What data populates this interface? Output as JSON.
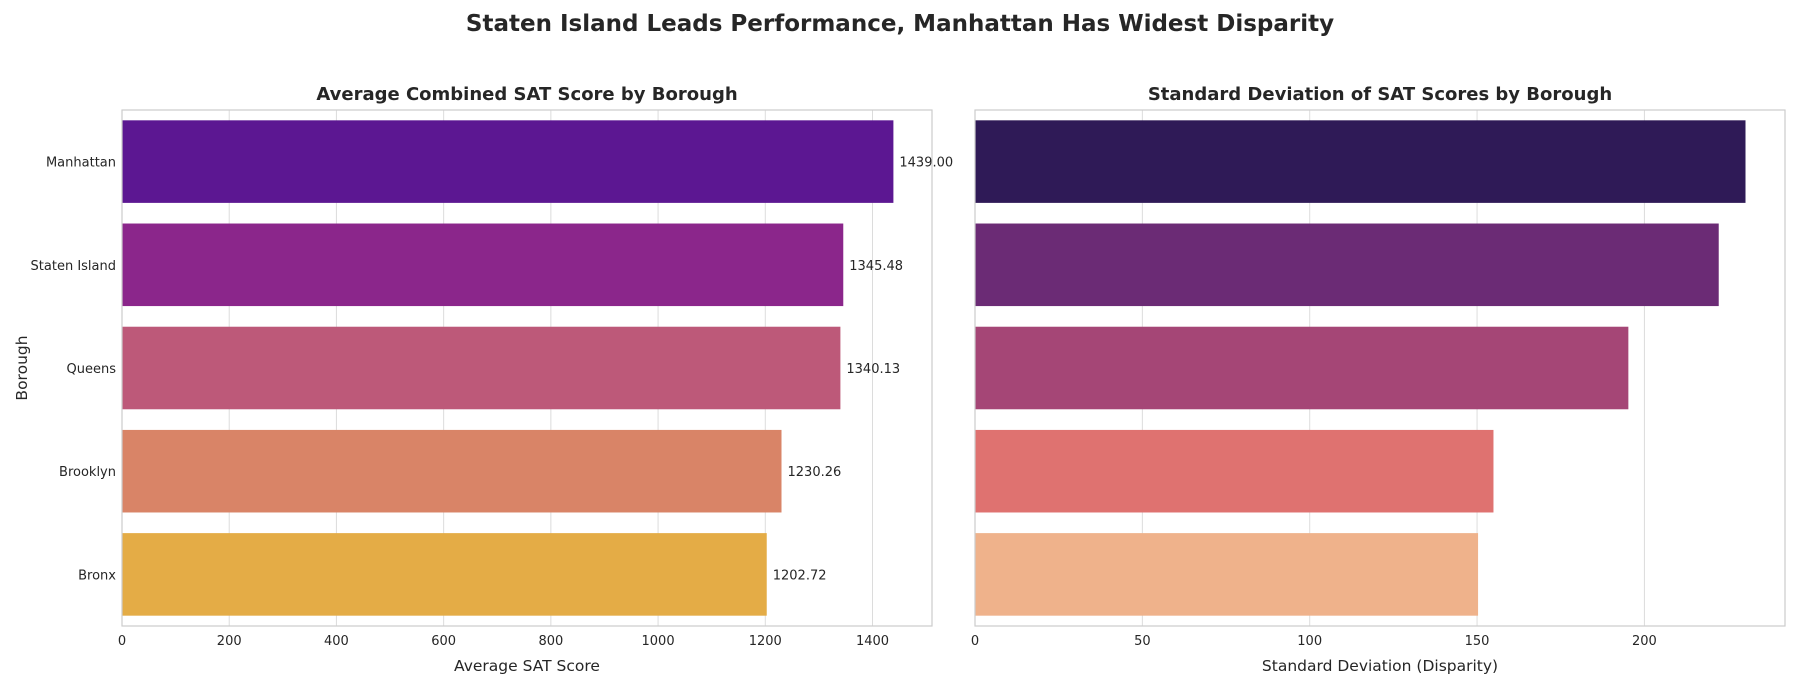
{
  "title": "Staten Island Leads Performance, Manhattan Has Widest Disparity",
  "chart_data": [
    {
      "type": "bar",
      "orientation": "horizontal",
      "title": "Average Combined SAT Score by Borough",
      "xlabel": "Average SAT Score",
      "ylabel": "Borough",
      "categories": [
        "Manhattan",
        "Staten Island",
        "Queens",
        "Brooklyn",
        "Bronx"
      ],
      "values": [
        1439.0,
        1345.48,
        1340.13,
        1230.26,
        1202.72
      ],
      "data_labels": [
        "1439.00",
        "1345.48",
        "1340.13",
        "1230.26",
        "1202.72"
      ],
      "colors": [
        "#5c1792",
        "#8b268b",
        "#bd5979",
        "#d98467",
        "#e4ac46"
      ],
      "xlim": [
        0,
        1511
      ],
      "xticks": [
        0,
        200,
        400,
        600,
        800,
        1000,
        1200,
        1400
      ],
      "grid": true
    },
    {
      "type": "bar",
      "orientation": "horizontal",
      "title": "Standard Deviation of SAT Scores by Borough",
      "xlabel": "Standard Deviation (Disparity)",
      "ylabel": "",
      "categories": [
        "Manhattan",
        "Staten Island",
        "Queens",
        "Brooklyn",
        "Bronx"
      ],
      "values": [
        230.2,
        222.2,
        195.2,
        154.9,
        150.3
      ],
      "colors": [
        "#2f1a57",
        "#6b2b75",
        "#a54676",
        "#df7270",
        "#efb28b"
      ],
      "xlim": [
        0,
        242
      ],
      "xticks": [
        0,
        50,
        100,
        150,
        200
      ],
      "grid": true
    }
  ]
}
